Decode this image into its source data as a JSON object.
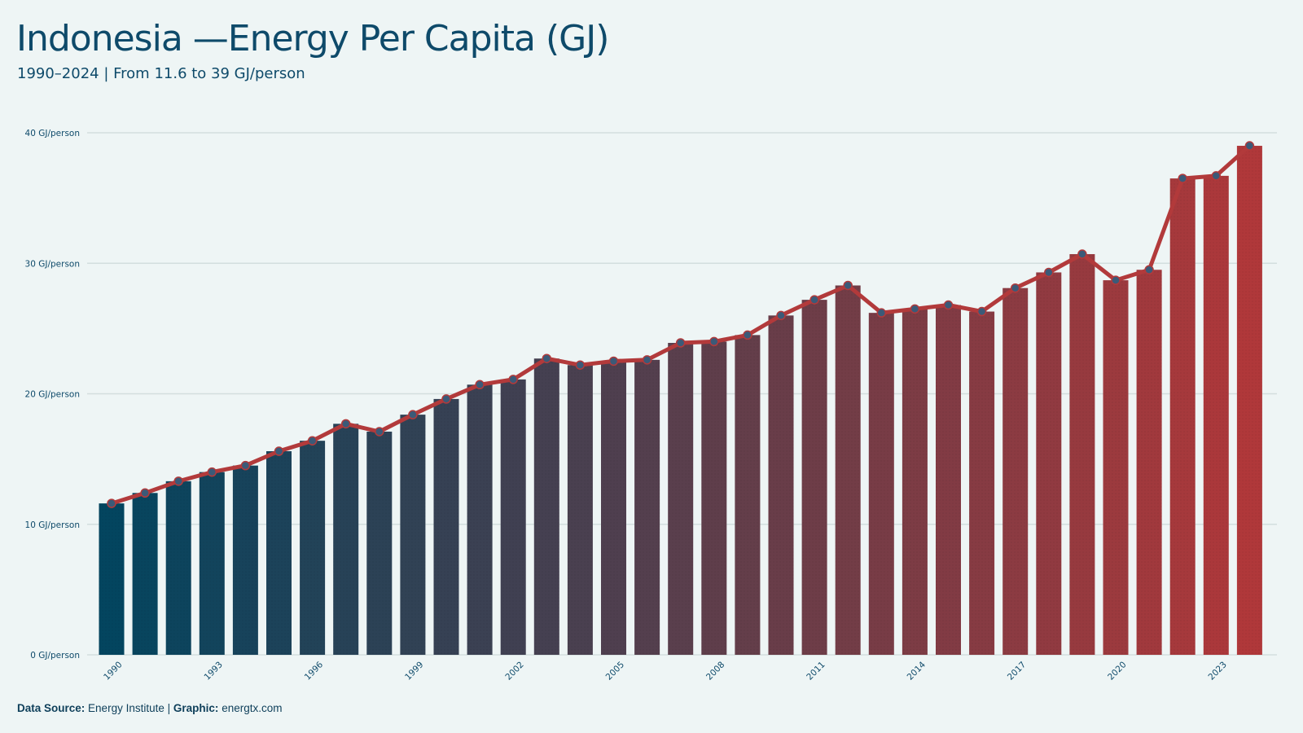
{
  "header": {
    "title": "Indonesia —Energy Per Capita (GJ)",
    "subtitle": "1990–2024 | From 11.6 to 39 GJ/person"
  },
  "footer": {
    "source_label": "Data Source:",
    "source_value": "Energy Institute",
    "separator": "|",
    "graphic_label": "Graphic:",
    "graphic_value": "energtx.com"
  },
  "colors": {
    "background": "#eef5f5",
    "bar_start": "#03455f",
    "bar_end": "#b0383a",
    "line": "#b23a3b",
    "marker_fill": "#3b5a78",
    "grid": "#d3dede",
    "text": "#0e4a6a"
  },
  "chart_data": {
    "type": "bar",
    "x": [
      1990,
      1991,
      1992,
      1993,
      1994,
      1995,
      1996,
      1997,
      1998,
      1999,
      2000,
      2001,
      2002,
      2003,
      2004,
      2005,
      2006,
      2007,
      2008,
      2009,
      2010,
      2011,
      2012,
      2013,
      2014,
      2015,
      2016,
      2017,
      2018,
      2019,
      2020,
      2021,
      2022,
      2023,
      2024
    ],
    "values": [
      11.6,
      12.4,
      13.3,
      14.0,
      14.5,
      15.6,
      16.4,
      17.7,
      17.1,
      18.4,
      19.6,
      20.7,
      21.1,
      22.7,
      22.2,
      22.5,
      22.6,
      23.9,
      24.0,
      24.5,
      26.0,
      27.2,
      28.3,
      26.2,
      26.5,
      26.8,
      26.3,
      28.1,
      29.3,
      30.7,
      28.7,
      29.5,
      36.5,
      36.7,
      39.0
    ],
    "overlay": "line with markers",
    "tick_labels": [
      "1990",
      "1993",
      "1996",
      "1999",
      "2002",
      "2005",
      "2008",
      "2011",
      "2014",
      "2017",
      "2020",
      "2023"
    ],
    "y_tick_labels": [
      "0 GJ/person",
      "10 GJ/person",
      "20 GJ/person",
      "30 GJ/person",
      "40 GJ/person"
    ],
    "ylim": [
      0,
      40
    ],
    "grid": true,
    "legend": "none"
  }
}
